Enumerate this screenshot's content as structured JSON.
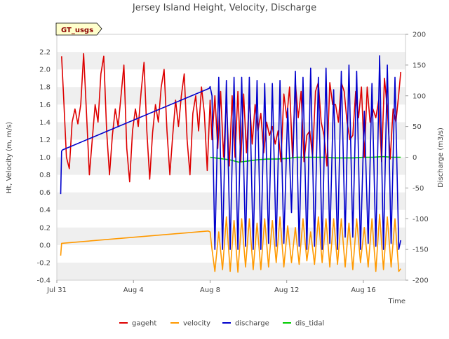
{
  "chart_data": {
    "type": "line",
    "title": "Jersey Island Height, Velocity, Discharge",
    "site_label": "GT_usgs",
    "xlabel": "Time",
    "ylabel_left": "Ht, Velocity (m, m/s)",
    "ylabel_right": "Discharge (m3/s)",
    "ylim_left": [
      -0.4,
      2.4
    ],
    "ylim_right": [
      -200,
      200
    ],
    "xlim_days": [
      0,
      18.2
    ],
    "x_ticks": [
      {
        "day": 0,
        "label": "Jul 31"
      },
      {
        "day": 4,
        "label": "Aug 4"
      },
      {
        "day": 8,
        "label": "Aug 8"
      },
      {
        "day": 12,
        "label": "Aug 12"
      },
      {
        "day": 16,
        "label": "Aug 16"
      }
    ],
    "y_ticks_left": [
      "-0.4",
      "-0.2",
      "0.0",
      "0.2",
      "0.4",
      "0.6",
      "0.8",
      "1.0",
      "1.2",
      "1.4",
      "1.6",
      "1.8",
      "2.0",
      "2.2"
    ],
    "y_ticks_right": [
      "-200",
      "-150",
      "-100",
      "-50",
      "0",
      "50",
      "100",
      "150",
      "200"
    ],
    "series": [
      {
        "name": "gageht",
        "color": "#dd0000",
        "axis": "left",
        "description": "tidal stage oscillating semi-diurnally",
        "x": [
          0.25,
          0.35,
          0.5,
          0.65,
          0.8,
          0.95,
          1.1,
          1.25,
          1.4,
          1.55,
          1.7,
          1.85,
          2.0,
          2.15,
          2.3,
          2.45,
          2.6,
          2.75,
          2.9,
          3.05,
          3.2,
          3.35,
          3.5,
          3.65,
          3.8,
          3.95,
          4.1,
          4.25,
          4.4,
          4.55,
          4.7,
          4.85,
          5.0,
          5.15,
          5.3,
          5.45,
          5.6,
          5.75,
          5.9,
          6.05,
          6.2,
          6.35,
          6.5,
          6.65,
          6.8,
          6.95,
          7.1,
          7.25,
          7.4,
          7.55,
          7.7,
          7.85,
          8.0,
          8.1,
          8.25,
          8.4,
          8.55,
          8.7,
          8.85,
          9.0,
          9.15,
          9.3,
          9.45,
          9.6,
          9.75,
          9.9,
          10.05,
          10.2,
          10.35,
          10.5,
          10.65,
          10.8,
          10.95,
          11.1,
          11.25,
          11.4,
          11.55,
          11.7,
          11.85,
          12.0,
          12.15,
          12.3,
          12.45,
          12.6,
          12.75,
          12.9,
          13.05,
          13.2,
          13.35,
          13.5,
          13.65,
          13.8,
          13.95,
          14.1,
          14.25,
          14.4,
          14.55,
          14.7,
          14.85,
          15.0,
          15.15,
          15.3,
          15.45,
          15.6,
          15.75,
          15.9,
          16.05,
          16.2,
          16.35,
          16.5,
          16.65,
          16.8,
          16.95,
          17.1,
          17.25,
          17.4,
          17.55,
          17.7,
          17.85,
          17.95
        ],
        "y": [
          2.15,
          1.7,
          1.0,
          0.87,
          1.4,
          1.55,
          1.38,
          1.6,
          2.18,
          1.5,
          0.8,
          1.2,
          1.6,
          1.4,
          1.95,
          2.15,
          1.3,
          0.8,
          1.25,
          1.55,
          1.35,
          1.7,
          2.05,
          1.1,
          0.72,
          1.3,
          1.55,
          1.35,
          1.75,
          2.08,
          1.3,
          0.75,
          1.28,
          1.6,
          1.4,
          1.8,
          2.0,
          1.3,
          0.8,
          1.25,
          1.65,
          1.35,
          1.7,
          1.95,
          1.2,
          0.8,
          1.5,
          1.7,
          1.3,
          1.8,
          1.5,
          0.85,
          1.65,
          1.2,
          1.7,
          1.1,
          1.75,
          1.0,
          1.65,
          0.9,
          1.7,
          1.0,
          1.75,
          0.95,
          1.72,
          1.05,
          1.68,
          1.15,
          1.6,
          1.3,
          1.5,
          1.05,
          1.4,
          1.25,
          1.35,
          1.15,
          1.3,
          0.95,
          1.72,
          1.45,
          1.8,
          1.0,
          1.85,
          1.45,
          1.75,
          0.95,
          1.25,
          1.3,
          1.0,
          1.75,
          1.85,
          1.4,
          1.25,
          0.9,
          1.85,
          1.6,
          1.6,
          1.4,
          1.85,
          1.75,
          1.4,
          1.2,
          1.25,
          1.75,
          1.45,
          1.8,
          1.0,
          1.8,
          1.4,
          1.55,
          1.45,
          1.65,
          0.95,
          1.9,
          1.55,
          0.98,
          1.55,
          1.4,
          1.72,
          1.97
        ]
      },
      {
        "name": "velocity",
        "color": "#ff9900",
        "axis": "left",
        "description": "velocity: linear gap fill then tidal oscillation",
        "x": [
          0.2,
          0.25,
          7.9,
          8.0,
          8.1,
          8.25,
          8.45,
          8.65,
          8.85,
          9.05,
          9.25,
          9.45,
          9.65,
          9.85,
          10.05,
          10.25,
          10.45,
          10.65,
          10.85,
          11.05,
          11.25,
          11.45,
          11.65,
          11.85,
          12.05,
          12.25,
          12.45,
          12.65,
          12.85,
          13.05,
          13.25,
          13.45,
          13.65,
          13.85,
          14.05,
          14.25,
          14.45,
          14.65,
          14.85,
          15.05,
          15.25,
          15.45,
          15.65,
          15.85,
          16.05,
          16.25,
          16.45,
          16.65,
          16.85,
          17.05,
          17.25,
          17.45,
          17.65,
          17.85,
          17.95
        ],
        "y": [
          -0.12,
          0.02,
          0.16,
          0.15,
          -0.05,
          -0.3,
          0.15,
          -0.28,
          0.32,
          -0.3,
          0.28,
          -0.31,
          0.3,
          -0.25,
          0.3,
          -0.28,
          0.25,
          -0.28,
          0.3,
          -0.25,
          0.28,
          -0.2,
          0.32,
          -0.25,
          0.22,
          -0.2,
          0.2,
          -0.22,
          0.3,
          -0.18,
          0.15,
          -0.22,
          0.32,
          -0.2,
          0.3,
          -0.25,
          0.3,
          -0.22,
          0.3,
          -0.25,
          0.25,
          -0.28,
          0.3,
          -0.2,
          0.2,
          -0.25,
          0.3,
          -0.3,
          0.35,
          -0.28,
          0.32,
          -0.25,
          0.3,
          -0.3,
          -0.27
        ]
      },
      {
        "name": "discharge",
        "color": "#0000cc",
        "axis": "right",
        "description": "discharge: linear gap fill then tidal oscillation",
        "x": [
          0.2,
          0.25,
          0.3,
          7.95,
          8.0,
          8.1,
          8.25,
          8.45,
          8.65,
          8.85,
          9.05,
          9.25,
          9.45,
          9.65,
          9.85,
          10.05,
          10.25,
          10.45,
          10.65,
          10.85,
          11.05,
          11.25,
          11.45,
          11.65,
          11.85,
          12.05,
          12.25,
          12.45,
          12.65,
          12.85,
          13.05,
          13.25,
          13.45,
          13.65,
          13.85,
          14.05,
          14.25,
          14.45,
          14.65,
          14.85,
          15.05,
          15.25,
          15.45,
          15.65,
          15.85,
          16.05,
          16.25,
          16.45,
          16.65,
          16.85,
          17.05,
          17.25,
          17.45,
          17.65,
          17.85,
          17.95
        ],
        "y": [
          -60,
          10,
          12,
          112,
          115,
          100,
          -150,
          130,
          -150,
          125,
          -150,
          130,
          -150,
          130,
          -145,
          130,
          -150,
          125,
          -150,
          120,
          -140,
          120,
          -145,
          125,
          -140,
          80,
          -90,
          140,
          -145,
          130,
          -150,
          145,
          -145,
          130,
          -150,
          145,
          -140,
          110,
          -150,
          140,
          -130,
          150,
          -130,
          140,
          -150,
          75,
          -140,
          120,
          -145,
          165,
          -150,
          150,
          -140,
          130,
          -150,
          -135
        ]
      },
      {
        "name": "dis_tidal",
        "color": "#00cc00",
        "axis": "right",
        "description": "tidally filtered discharge",
        "x": [
          8.0,
          8.5,
          9.0,
          9.5,
          10.0,
          10.5,
          11.0,
          11.5,
          12.0,
          12.5,
          13.0,
          13.5,
          14.0,
          14.5,
          15.0,
          15.5,
          16.0,
          16.5,
          17.0,
          17.5,
          17.95
        ],
        "y": [
          0,
          -2,
          -4,
          -8,
          -6,
          -4,
          -3,
          -3,
          -2,
          0,
          0,
          0,
          0,
          -1,
          -1,
          -1,
          0,
          0,
          1,
          0,
          0
        ]
      }
    ]
  }
}
